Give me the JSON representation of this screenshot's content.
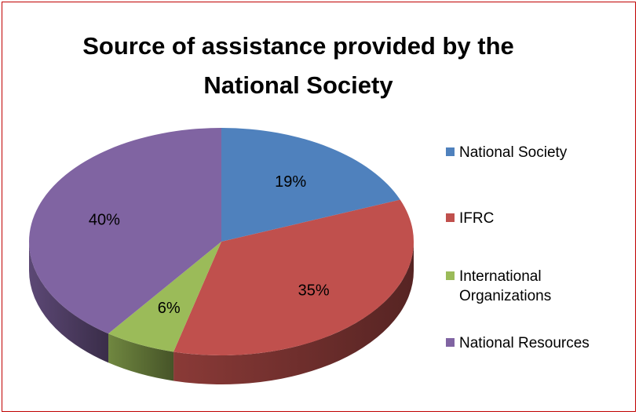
{
  "chart_data": {
    "type": "pie",
    "title": "Source of assistance provided by the National Society",
    "title_lines": [
      "Source of assistance provided by the",
      "National Society"
    ],
    "three_d": true,
    "legend_position": "right",
    "slices": [
      {
        "label": "National Society",
        "value": 19,
        "data_label": "19%",
        "color": "#4f81bd"
      },
      {
        "label": "IFRC",
        "value": 35,
        "data_label": "35%",
        "color": "#c0504d"
      },
      {
        "label": "International Organizations",
        "value": 6,
        "data_label": "6%",
        "color": "#9bbb59"
      },
      {
        "label": "National Resources",
        "value": 40,
        "data_label": "40%",
        "color": "#8064a2"
      }
    ]
  },
  "legend": {
    "items": [
      {
        "label": "National Society",
        "color": "#4f81bd"
      },
      {
        "label": "IFRC",
        "color": "#c0504d"
      },
      {
        "label": "International\nOrganizations",
        "color": "#9bbb59"
      },
      {
        "label": "National Resources",
        "color": "#8064a2"
      }
    ]
  },
  "border_color": "#c00000"
}
